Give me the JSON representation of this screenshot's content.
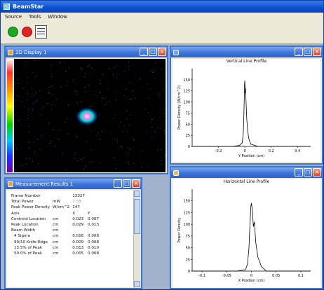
{
  "app": {
    "title": "BeamStar"
  },
  "menu": [
    "Source",
    "Tools",
    "Window"
  ],
  "toolbar": {
    "run_color": "#1aa81f",
    "stop_color": "#e02323"
  },
  "display2d": {
    "title": "2D Display 1"
  },
  "vertical": {
    "window_title": "",
    "chart_title": "Vertical Line Profile",
    "ylabel": "Power Density (W/cm^2)",
    "xlabel": "Y Position (cm)"
  },
  "horizontal": {
    "window_title": "",
    "chart_title": "Horizontal Line Profile",
    "ylabel": "Power Density",
    "xlabel": "X Position (cm)"
  },
  "results": {
    "title": "Measurement Results 1",
    "header": [
      "",
      "",
      "X",
      "Y"
    ],
    "rows": [
      [
        "Frame Number",
        "",
        "13327",
        ""
      ],
      [
        "Total Power",
        "mW",
        "7.33",
        ""
      ],
      [
        "Peak Power Density",
        "W/cm^2",
        "147",
        ""
      ],
      [
        "Axis",
        "",
        "X",
        "Y"
      ],
      [
        "Centroid Location",
        "cm",
        "0.023",
        "0.007"
      ],
      [
        "Peak Location",
        "cm",
        "0.029",
        "0.013"
      ],
      [
        "Beam Width",
        "cm",
        "",
        ""
      ],
      [
        "4 Sigma",
        "cm",
        "0.016",
        "0.008"
      ],
      [
        "90/10 Knife Edge",
        "cm",
        "0.009",
        "0.008"
      ],
      [
        "13.5% of Peak",
        "cm",
        "0.013",
        "0.010"
      ],
      [
        "50.0% of Peak",
        "cm",
        "0.005",
        "0.008"
      ]
    ]
  },
  "chart_data": [
    {
      "type": "line",
      "title": "Vertical Line Profile",
      "xlabel": "Y Position (cm)",
      "ylabel": "Power Density (W/cm^2)",
      "xlim": [
        -0.4,
        0.5
      ],
      "ylim": [
        0,
        175
      ],
      "xticks": [
        "-0.2",
        "0",
        "0.2",
        "0.4"
      ],
      "yticks": [
        "0",
        "25",
        "50",
        "75",
        "100",
        "125",
        "150"
      ],
      "x": [
        -0.4,
        -0.1,
        -0.04,
        -0.02,
        -0.012,
        -0.008,
        -0.005,
        -0.002,
        0.0,
        0.003,
        0.006,
        0.01,
        0.015,
        0.022,
        0.03,
        0.045,
        0.1,
        0.5
      ],
      "y": [
        0,
        0,
        2,
        8,
        30,
        60,
        100,
        140,
        148,
        120,
        130,
        95,
        60,
        35,
        18,
        5,
        0,
        0
      ]
    },
    {
      "type": "line",
      "title": "Horizontal Line Profile",
      "xlabel": "X Position (cm)",
      "ylabel": "Power Density",
      "xlim": [
        -0.12,
        0.12
      ],
      "ylim": [
        0,
        175
      ],
      "xticks": [
        "-0.1",
        "-0.05",
        "0",
        "0.05",
        "0.1"
      ],
      "yticks": [
        "0",
        "25",
        "50",
        "75",
        "100",
        "125",
        "150"
      ],
      "x": [
        -0.12,
        -0.03,
        -0.012,
        -0.008,
        -0.005,
        -0.003,
        -0.001,
        0.0,
        0.002,
        0.004,
        0.006,
        0.009,
        0.013,
        0.02,
        0.03,
        0.12
      ],
      "y": [
        0,
        0,
        3,
        15,
        50,
        100,
        140,
        145,
        130,
        95,
        105,
        60,
        30,
        10,
        0,
        0
      ]
    }
  ]
}
